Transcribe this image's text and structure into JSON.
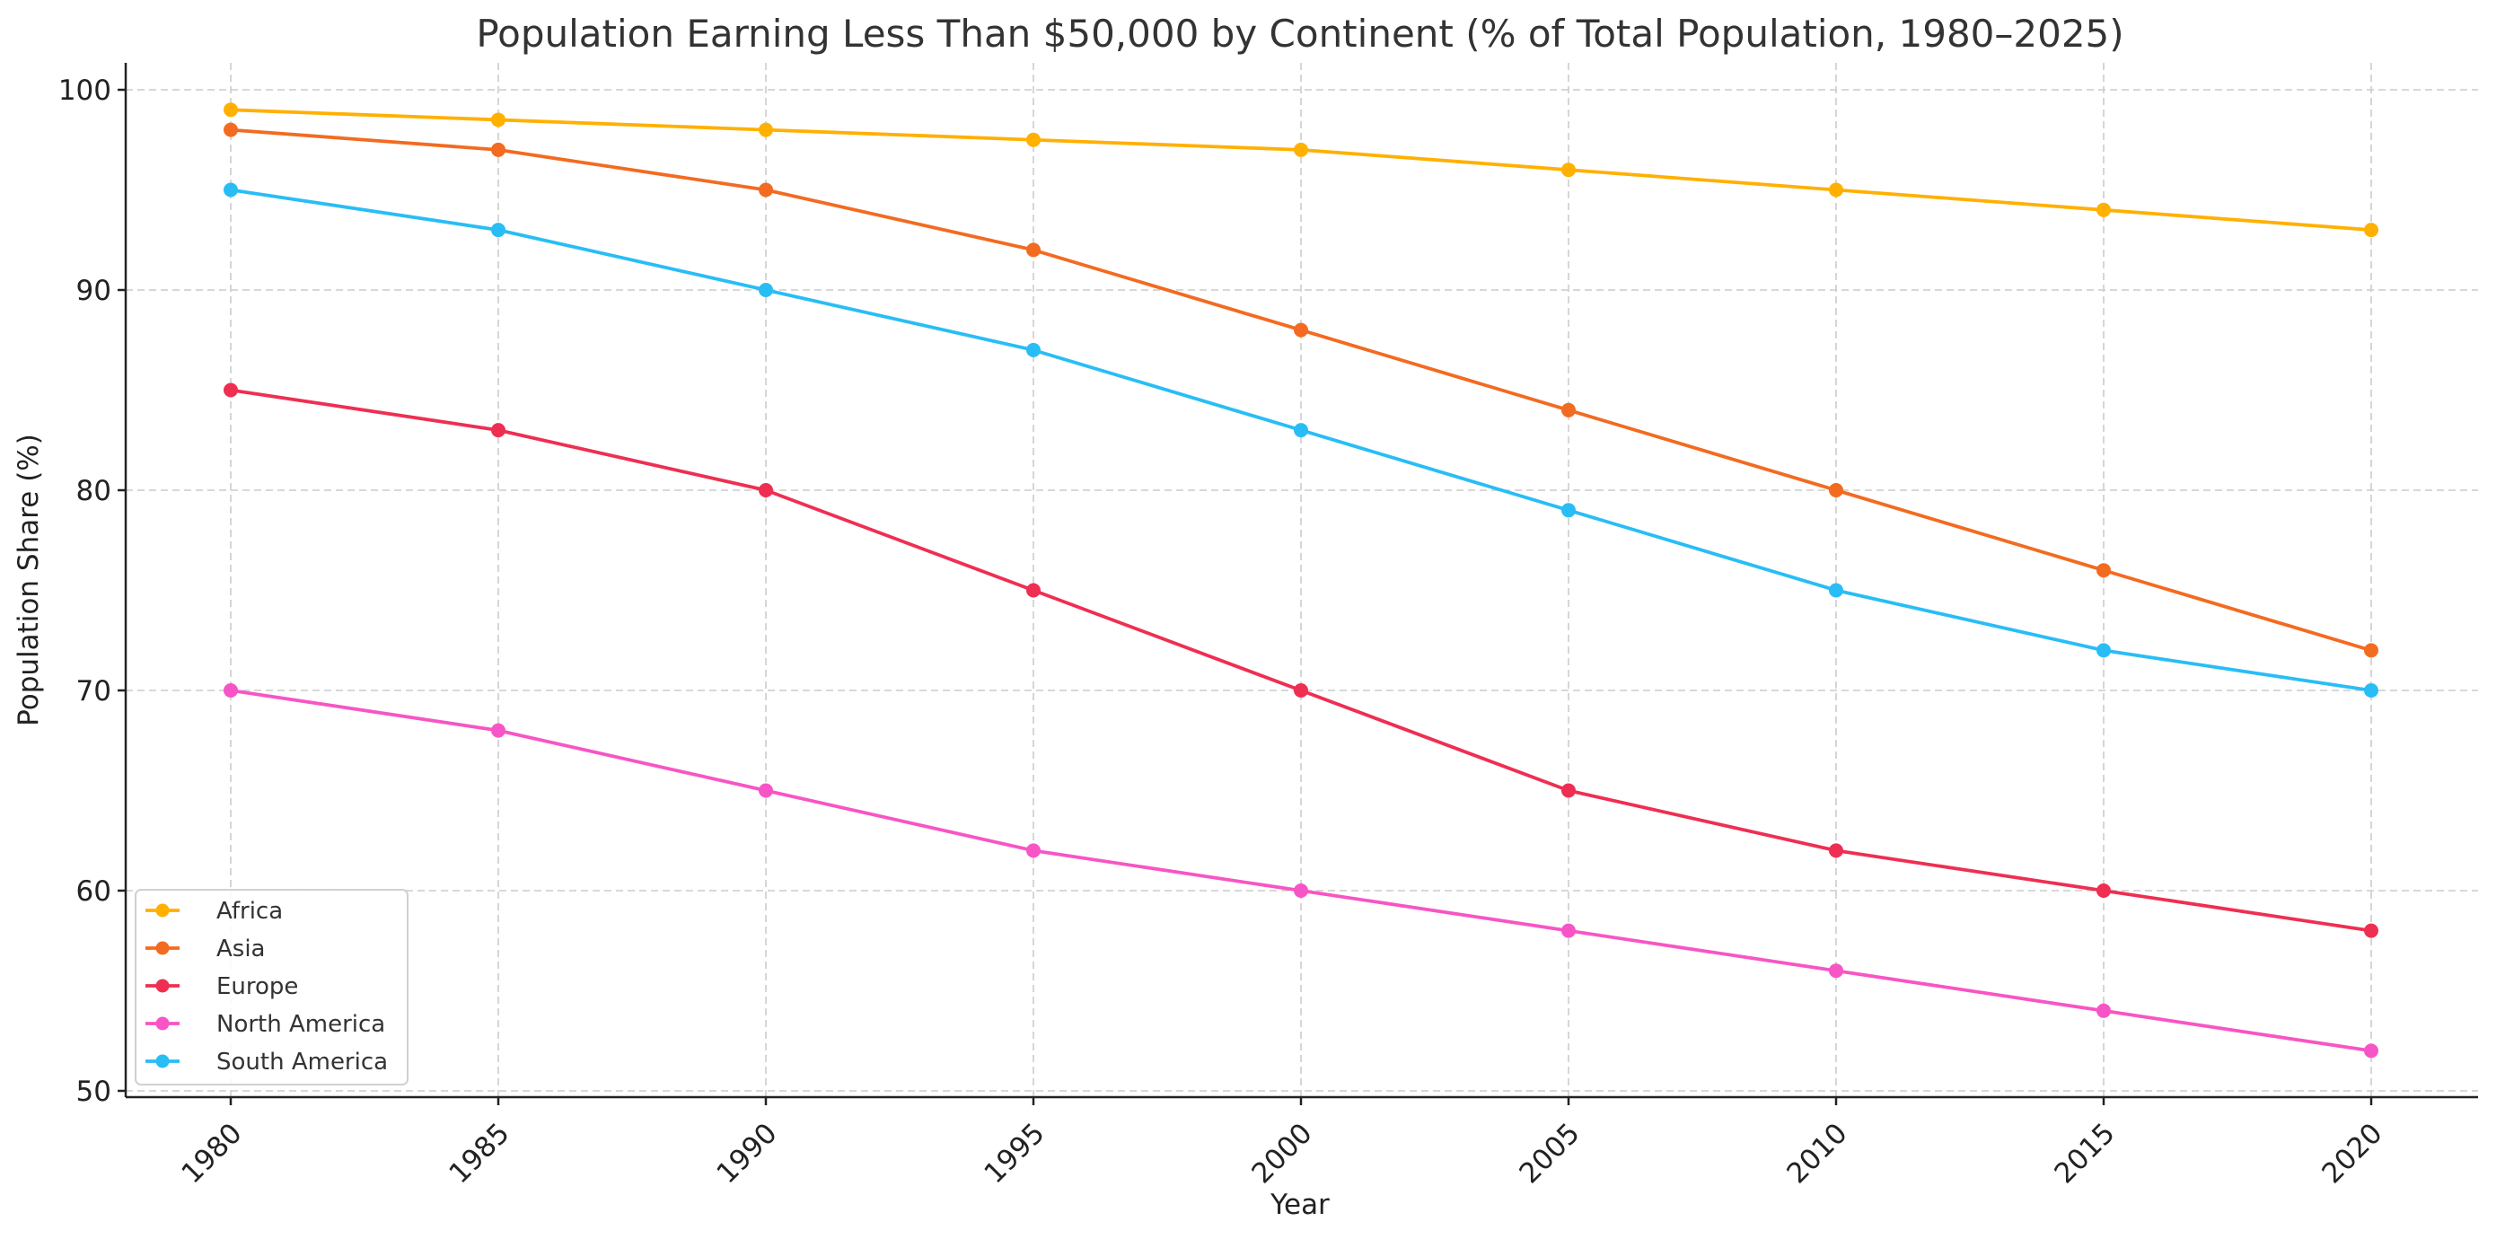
{
  "chart_data": {
    "type": "line",
    "title": "Population Earning Less Than $50,000 by Continent (% of Total Population, 1980–2025)",
    "xlabel": "Year",
    "ylabel": "Population Share (%)",
    "x": [
      1980,
      1985,
      1990,
      1995,
      2000,
      2005,
      2010,
      2015,
      2020
    ],
    "xticks": [
      "1980",
      "1985",
      "1990",
      "1995",
      "2000",
      "2005",
      "2010",
      "2015",
      "2020"
    ],
    "yticks": [
      "50",
      "60",
      "70",
      "80",
      "90",
      "100"
    ],
    "ylim": [
      50,
      100
    ],
    "xlim": [
      1978,
      2024
    ],
    "grid": true,
    "legend_position": "bottom-left",
    "series": [
      {
        "name": "Africa",
        "color": "#FFB000",
        "values": [
          99,
          98.5,
          98,
          97.5,
          97,
          96,
          95,
          94,
          93
        ]
      },
      {
        "name": "Asia",
        "color": "#F26B21",
        "values": [
          98,
          97,
          95,
          92,
          88,
          84,
          80,
          76,
          72
        ]
      },
      {
        "name": "Europe",
        "color": "#EE2F52",
        "values": [
          85,
          83,
          80,
          75,
          70,
          65,
          62,
          60,
          58
        ]
      },
      {
        "name": "North America",
        "color": "#F755C5",
        "values": [
          70,
          68,
          65,
          62,
          60,
          58,
          56,
          54,
          52
        ]
      },
      {
        "name": "South America",
        "color": "#29BDF5",
        "values": [
          95,
          93,
          90,
          87,
          83,
          79,
          75,
          72,
          70
        ]
      }
    ]
  }
}
